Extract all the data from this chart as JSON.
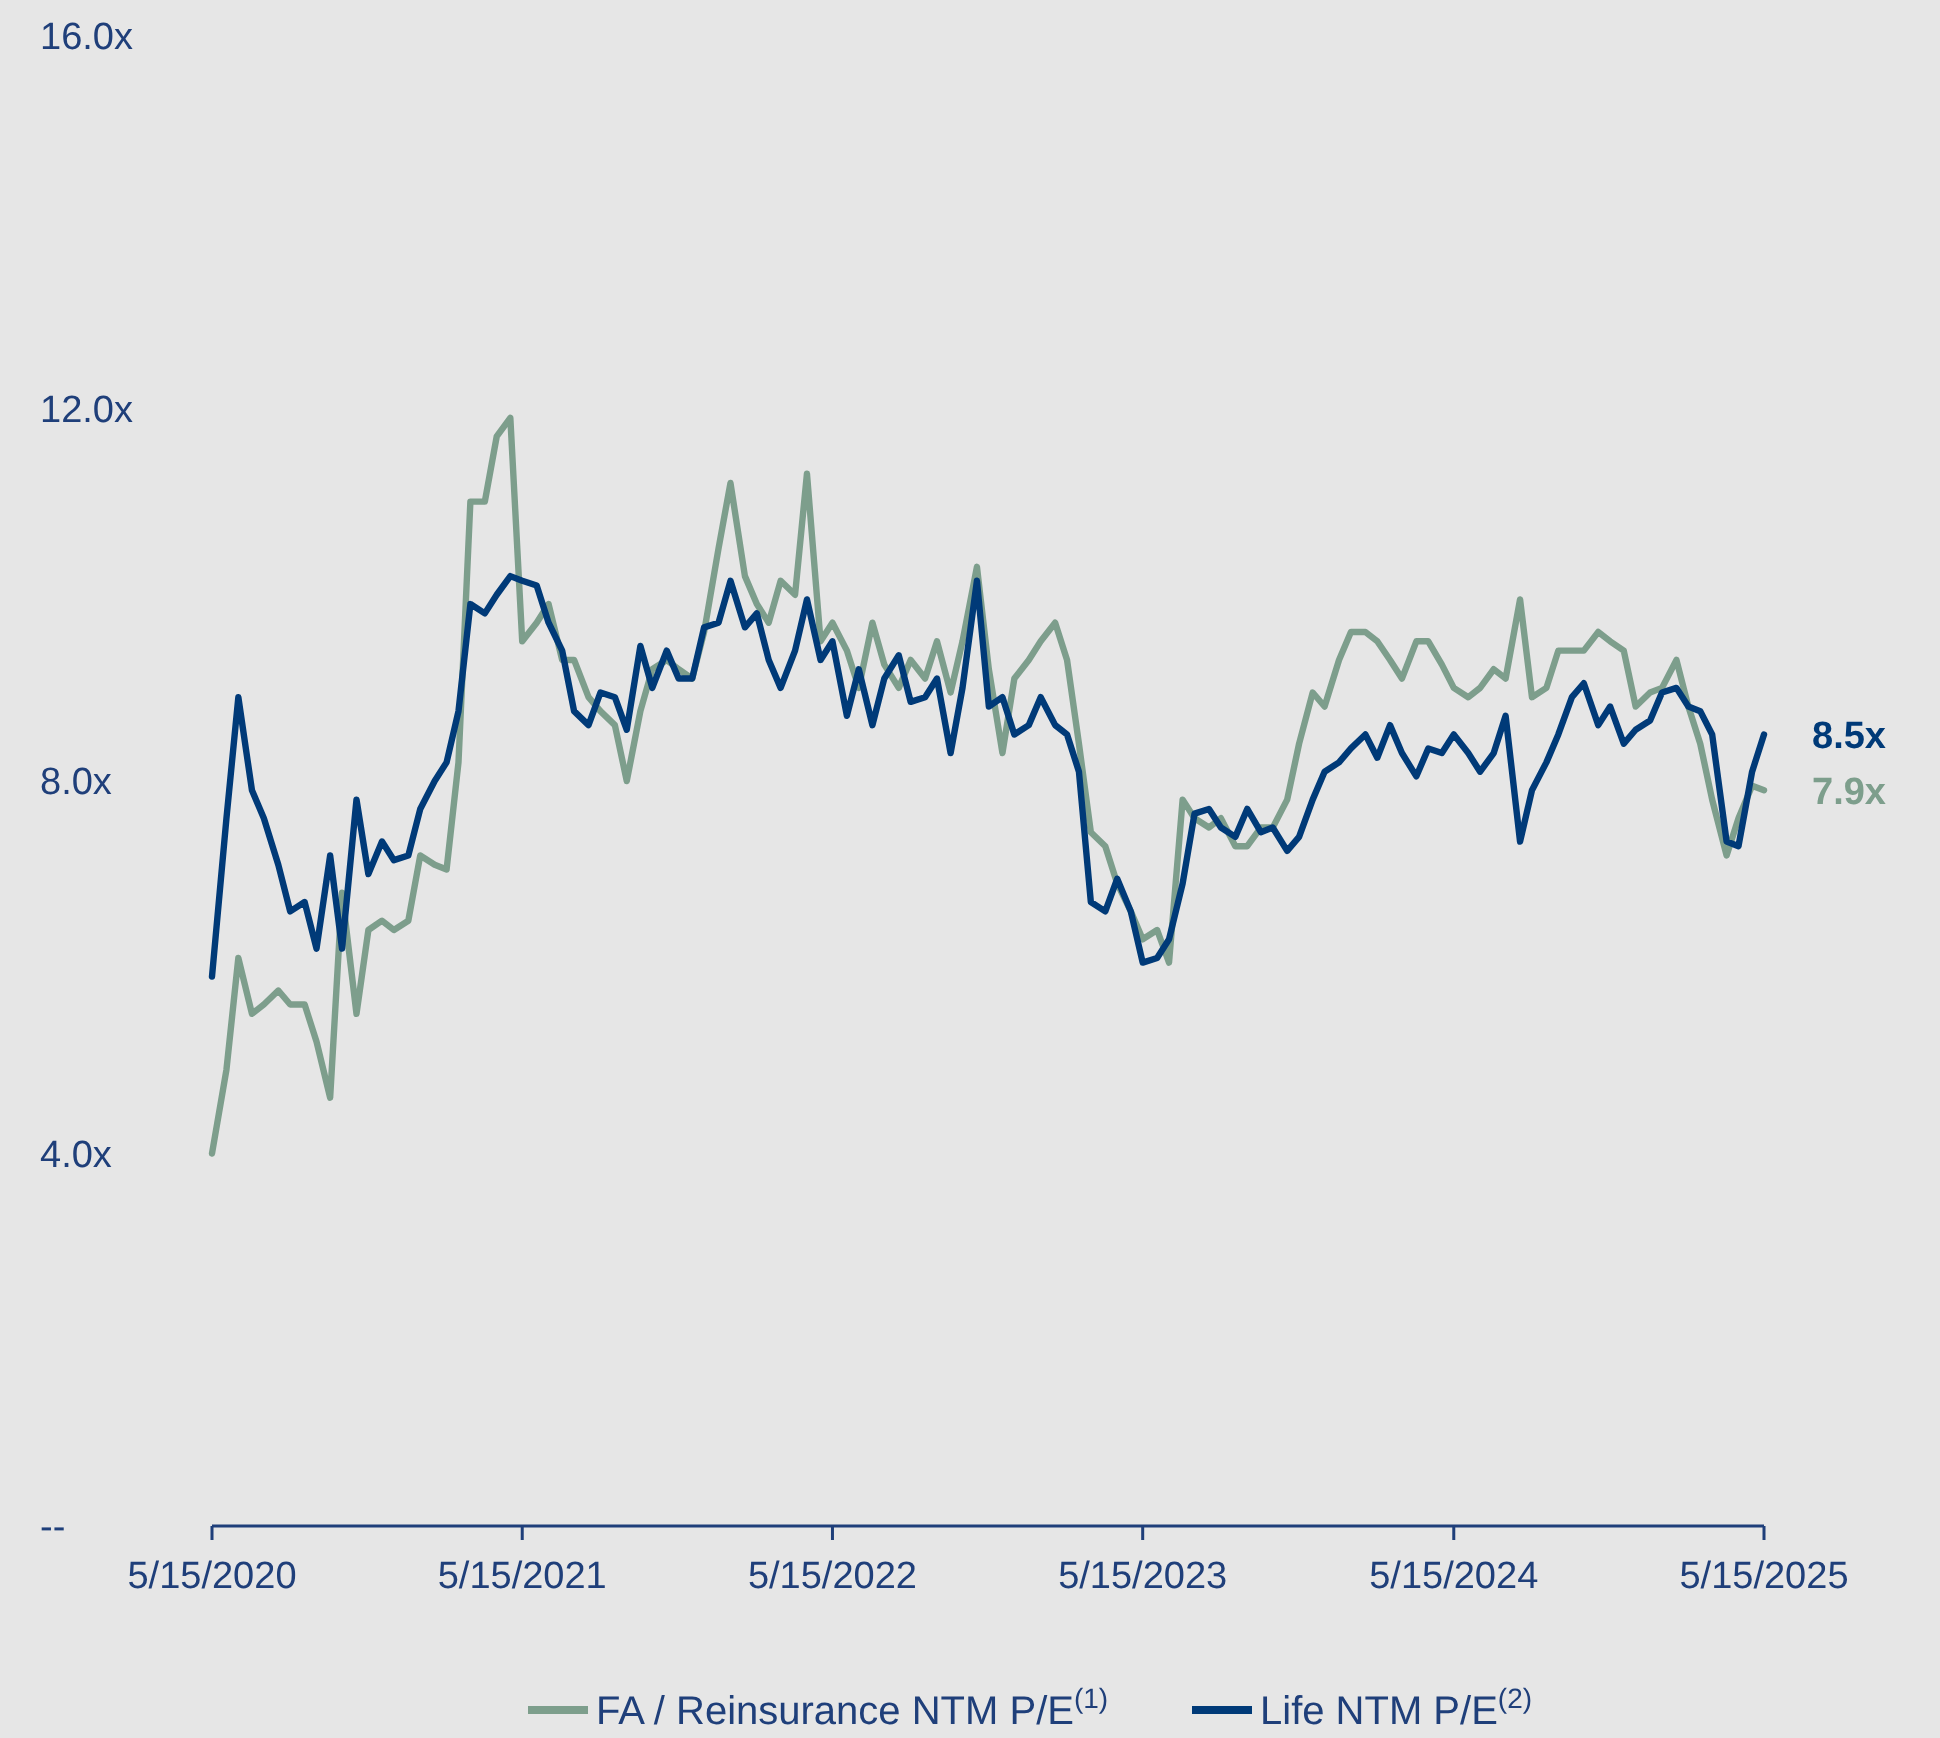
{
  "chart_data": {
    "type": "line",
    "x": [
      "2020-05-15",
      "2020-06-01",
      "2020-06-15",
      "2020-07-01",
      "2020-07-15",
      "2020-08-01",
      "2020-08-15",
      "2020-09-01",
      "2020-09-15",
      "2020-10-01",
      "2020-10-15",
      "2020-11-01",
      "2020-11-15",
      "2020-12-01",
      "2020-12-15",
      "2021-01-01",
      "2021-01-15",
      "2021-02-01",
      "2021-02-15",
      "2021-03-01",
      "2021-03-15",
      "2021-04-01",
      "2021-04-15",
      "2021-05-01",
      "2021-05-15",
      "2021-06-01",
      "2021-06-15",
      "2021-07-01",
      "2021-07-15",
      "2021-08-01",
      "2021-08-15",
      "2021-09-01",
      "2021-09-15",
      "2021-10-01",
      "2021-10-15",
      "2021-11-01",
      "2021-11-15",
      "2021-12-01",
      "2021-12-15",
      "2022-01-01",
      "2022-01-15",
      "2022-02-01",
      "2022-02-15",
      "2022-03-01",
      "2022-03-15",
      "2022-04-01",
      "2022-04-15",
      "2022-05-01",
      "2022-05-15",
      "2022-06-01",
      "2022-06-15",
      "2022-07-01",
      "2022-07-15",
      "2022-08-01",
      "2022-08-15",
      "2022-09-01",
      "2022-09-15",
      "2022-10-01",
      "2022-10-15",
      "2022-11-01",
      "2022-11-15",
      "2022-12-01",
      "2022-12-15",
      "2023-01-01",
      "2023-01-15",
      "2023-02-01",
      "2023-02-15",
      "2023-03-01",
      "2023-03-15",
      "2023-04-01",
      "2023-04-15",
      "2023-05-01",
      "2023-05-15",
      "2023-06-01",
      "2023-06-15",
      "2023-07-01",
      "2023-07-15",
      "2023-08-01",
      "2023-08-15",
      "2023-09-01",
      "2023-09-15",
      "2023-10-01",
      "2023-10-15",
      "2023-11-01",
      "2023-11-15",
      "2023-12-01",
      "2023-12-15",
      "2024-01-01",
      "2024-01-15",
      "2024-02-01",
      "2024-02-15",
      "2024-03-01",
      "2024-03-15",
      "2024-04-01",
      "2024-04-15",
      "2024-05-01",
      "2024-05-15",
      "2024-06-01",
      "2024-06-15",
      "2024-07-01",
      "2024-07-15",
      "2024-08-01",
      "2024-08-15",
      "2024-09-01",
      "2024-09-15",
      "2024-10-01",
      "2024-10-15",
      "2024-11-01",
      "2024-11-15",
      "2024-12-01",
      "2024-12-15",
      "2025-01-01",
      "2025-01-15",
      "2025-02-01",
      "2025-02-15",
      "2025-03-01",
      "2025-03-15",
      "2025-04-01",
      "2025-04-15",
      "2025-05-01",
      "2025-05-15"
    ],
    "series": [
      {
        "name": "FA / Reinsurance NTM P/E$^{(1)}$",
        "color": "#7d9e8c",
        "values": [
          4.0,
          4.9,
          6.1,
          5.5,
          5.6,
          5.75,
          5.6,
          5.6,
          5.2,
          4.6,
          6.8,
          5.5,
          6.4,
          6.5,
          6.4,
          6.5,
          7.2,
          7.1,
          7.05,
          8.2,
          11.0,
          11.0,
          11.7,
          11.9,
          9.5,
          9.7,
          9.9,
          9.3,
          9.3,
          8.9,
          8.75,
          8.6,
          8.0,
          8.75,
          9.2,
          9.3,
          9.2,
          9.1,
          9.6,
          10.5,
          11.2,
          10.2,
          9.9,
          9.7,
          10.15,
          10.0,
          11.3,
          9.5,
          9.7,
          9.4,
          9.0,
          9.7,
          9.25,
          9.0,
          9.3,
          9.1,
          9.5,
          8.95,
          9.5,
          10.3,
          9.2,
          8.3,
          9.1,
          9.3,
          9.5,
          9.7,
          9.3,
          8.4,
          7.45,
          7.3,
          6.9,
          6.6,
          6.3,
          6.4,
          6.05,
          7.8,
          7.6,
          7.5,
          7.6,
          7.3,
          7.3,
          7.5,
          7.5,
          7.8,
          8.4,
          8.95,
          8.8,
          9.3,
          9.6,
          9.6,
          9.5,
          9.3,
          9.1,
          9.5,
          9.5,
          9.25,
          9.0,
          8.9,
          9.0,
          9.2,
          9.1,
          9.95,
          8.9,
          9.0,
          9.4,
          9.4,
          9.4,
          9.6,
          9.5,
          9.4,
          8.8,
          8.95,
          9.0,
          9.3,
          8.8,
          8.4,
          7.8,
          7.2,
          7.6,
          7.95,
          7.9
        ],
        "value_labels": [
          null,
          null,
          null,
          null,
          null,
          null,
          null,
          null,
          null,
          null,
          null,
          null,
          null,
          null,
          null,
          null,
          null,
          null,
          null,
          null,
          null,
          null,
          null,
          null,
          null,
          null,
          null,
          null,
          null,
          null,
          null,
          null,
          null,
          null,
          null,
          null,
          null,
          null,
          null,
          null,
          null,
          null,
          null,
          null,
          null,
          null,
          null,
          null,
          null,
          null,
          null,
          null,
          null,
          null,
          null,
          null,
          null,
          null,
          null,
          null,
          null,
          null,
          null,
          null,
          null,
          null,
          null,
          null,
          null,
          null,
          null,
          null,
          null,
          null,
          null,
          null,
          null,
          null,
          null,
          null,
          null,
          null,
          null,
          null,
          null,
          null,
          null,
          null,
          null,
          null,
          null,
          null,
          null,
          null,
          null,
          null,
          null,
          null,
          null,
          null,
          null,
          null,
          null,
          null,
          null,
          null,
          null,
          null,
          null,
          null,
          null,
          null,
          null,
          null,
          null,
          null,
          null,
          null,
          null,
          null,
          "7.9x"
        ]
      },
      {
        "name": "Life NTM P/E$^{(2)}$",
        "color": "#003a78",
        "values": [
          5.9,
          7.6,
          8.9,
          7.9,
          7.6,
          7.1,
          6.6,
          6.7,
          6.2,
          7.2,
          6.2,
          7.8,
          7.0,
          7.35,
          7.15,
          7.2,
          7.7,
          8.0,
          8.2,
          8.75,
          9.9,
          9.8,
          10.0,
          10.2,
          10.15,
          10.1,
          9.7,
          9.4,
          8.75,
          8.6,
          8.95,
          8.9,
          8.55,
          9.45,
          9.0,
          9.4,
          9.1,
          9.1,
          9.65,
          9.7,
          10.15,
          9.65,
          9.8,
          9.3,
          9.0,
          9.4,
          9.95,
          9.3,
          9.5,
          8.7,
          9.2,
          8.6,
          9.1,
          9.35,
          8.85,
          8.9,
          9.1,
          8.3,
          9.0,
          10.15,
          8.8,
          8.9,
          8.5,
          8.6,
          8.9,
          8.6,
          8.5,
          8.1,
          6.7,
          6.6,
          6.95,
          6.6,
          6.05,
          6.1,
          6.3,
          6.9,
          7.65,
          7.7,
          7.5,
          7.4,
          7.7,
          7.45,
          7.5,
          7.25,
          7.4,
          7.8,
          8.1,
          8.2,
          8.35,
          8.5,
          8.25,
          8.6,
          8.3,
          8.05,
          8.35,
          8.3,
          8.5,
          8.3,
          8.1,
          8.3,
          8.7,
          7.35,
          7.9,
          8.2,
          8.5,
          8.9,
          9.05,
          8.6,
          8.8,
          8.4,
          8.55,
          8.65,
          8.95,
          9.0,
          8.8,
          8.75,
          8.5,
          7.35,
          7.3,
          8.1,
          8.5
        ],
        "value_labels": [
          null,
          null,
          null,
          null,
          null,
          null,
          null,
          null,
          null,
          null,
          null,
          null,
          null,
          null,
          null,
          null,
          null,
          null,
          null,
          null,
          null,
          null,
          null,
          null,
          null,
          null,
          null,
          null,
          null,
          null,
          null,
          null,
          null,
          null,
          null,
          null,
          null,
          null,
          null,
          null,
          null,
          null,
          null,
          null,
          null,
          null,
          null,
          null,
          null,
          null,
          null,
          null,
          null,
          null,
          null,
          null,
          null,
          null,
          null,
          null,
          null,
          null,
          null,
          null,
          null,
          null,
          null,
          null,
          null,
          null,
          null,
          null,
          null,
          null,
          null,
          null,
          null,
          null,
          null,
          null,
          null,
          null,
          null,
          null,
          null,
          null,
          null,
          null,
          null,
          null,
          null,
          null,
          null,
          null,
          null,
          null,
          null,
          null,
          null,
          null,
          null,
          null,
          null,
          null,
          null,
          null,
          null,
          null,
          null,
          null,
          null,
          null,
          null,
          null,
          null,
          null,
          null,
          null,
          null,
          null,
          "8.5x"
        ]
      }
    ],
    "xlim": [
      "2020-05-15",
      "2025-05-15"
    ],
    "xticks": [
      {
        "value": "2020-05-15",
        "label": "5/15/2020"
      },
      {
        "value": "2021-05-15",
        "label": "5/15/2021"
      },
      {
        "value": "2022-05-15",
        "label": "5/15/2022"
      },
      {
        "value": "2023-05-15",
        "label": "5/15/2023"
      },
      {
        "value": "2024-05-15",
        "label": "5/15/2024"
      },
      {
        "value": "2025-05-15",
        "label": "5/15/2025"
      }
    ],
    "ylim": [
      0,
      16
    ],
    "yticks": [
      {
        "value": 0,
        "label": "--"
      },
      {
        "value": 4,
        "label": "4.0x"
      },
      {
        "value": 8,
        "label": "8.0x"
      },
      {
        "value": 12,
        "label": "12.0x"
      },
      {
        "value": 16,
        "label": "16.0x"
      }
    ],
    "grid": false,
    "legend": "bottom",
    "line_style": "solid",
    "marker": "none"
  }
}
